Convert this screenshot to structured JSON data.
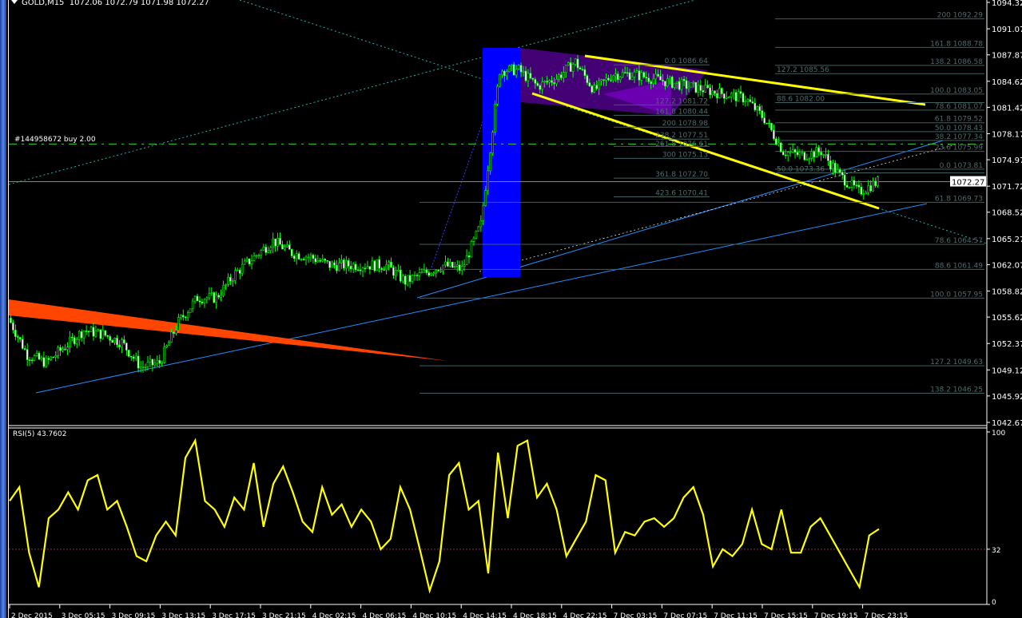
{
  "header": {
    "symbol": "GOLD,M15",
    "open": "1072.06",
    "high": "1072.79",
    "low": "1071.98",
    "close": "1072.27"
  },
  "order_label": "#144958672 buy 2.00",
  "order_price": 1076.9,
  "current_price": "1072.27",
  "colors": {
    "background": "#000000",
    "bull_candle": "#00ff00",
    "trendline_yellow": "#ffff00",
    "channel_blue": "#1e90ff",
    "rectangle": "#0000ff",
    "wedge": "#ff4500",
    "triangle": "#4b0082",
    "fib": "#4d6b6b",
    "rsi": "#ffff00"
  },
  "chart_data": [
    {
      "type": "candlestick",
      "title": "GOLD,M15",
      "price_axis": [
        "1094.32",
        "1091.07",
        "1087.87",
        "1084.62",
        "1081.42",
        "1078.17",
        "1074.97",
        "1071.72",
        "1068.52",
        "1065.27",
        "1062.07",
        "1058.82",
        "1055.62",
        "1052.37",
        "1049.12",
        "1045.92",
        "1042.67"
      ],
      "ylim": [
        1042.67,
        1094.32
      ],
      "time_axis": [
        "2 Dec 2015",
        "3 Dec 05:15",
        "3 Dec 09:15",
        "3 Dec 13:15",
        "3 Dec 17:15",
        "3 Dec 21:15",
        "4 Dec 02:15",
        "4 Dec 06:15",
        "4 Dec 10:15",
        "4 Dec 14:15",
        "4 Dec 18:15",
        "4 Dec 22:15",
        "7 Dec 03:15",
        "7 Dec 07:15",
        "7 Dec 11:15",
        "7 Dec 15:15",
        "7 Dec 19:15",
        "7 Dec 23:15"
      ],
      "close_path": [
        1055.5,
        1051,
        1050,
        1052,
        1054,
        1053.5,
        1052.5,
        1049.5,
        1050,
        1055,
        1058,
        1058,
        1061,
        1063,
        1065,
        1063.5,
        1063,
        1062,
        1062,
        1062,
        1062,
        1060,
        1061,
        1062,
        1061.5,
        1067,
        1086,
        1086,
        1084,
        1085,
        1087,
        1083.5,
        1085.5,
        1085.5,
        1085,
        1084.5,
        1084,
        1083.5,
        1083,
        1082.5,
        1080,
        1076,
        1075.5,
        1076,
        1073,
        1071,
        1072.27
      ],
      "fib_right": [
        {
          "level": "200",
          "price": "1092.29"
        },
        {
          "level": "161.8",
          "price": "1088.78"
        },
        {
          "level": "138.2",
          "price": "1086.58"
        },
        {
          "level": "127.2",
          "price": "1085.56"
        },
        {
          "level": "100.0",
          "price": "1083.05"
        },
        {
          "level": "88.6",
          "price": "1082.00"
        },
        {
          "level": "78.6",
          "price": "1081.07"
        },
        {
          "level": "61.8",
          "price": "1079.52"
        },
        {
          "level": "50.0",
          "price": "1078.43"
        },
        {
          "level": "38.2",
          "price": "1077.34"
        },
        {
          "level": "23.6",
          "price": "1075.99"
        },
        {
          "level": "0.0",
          "price": "1073.81"
        },
        {
          "level": "50.0",
          "price": "1073.36"
        },
        {
          "level": "61.8",
          "price": "1069.73"
        },
        {
          "level": "78.6",
          "price": "1064.57"
        },
        {
          "level": "88.6",
          "price": "1061.49"
        },
        {
          "level": "100.0",
          "price": "1057.95"
        },
        {
          "level": "127.2",
          "price": "1049.63"
        },
        {
          "level": "138.2",
          "price": "1046.25"
        }
      ],
      "fib_mid": [
        {
          "level": "0.0",
          "price": "1086.64"
        },
        {
          "level": "127.2",
          "price": "1081.72"
        },
        {
          "level": "161.8",
          "price": "1080.44"
        },
        {
          "level": "200",
          "price": "1078.98"
        },
        {
          "level": "238.2",
          "price": "1077.51"
        },
        {
          "level": "261.8",
          "price": "1076.61"
        },
        {
          "level": "300",
          "price": "1075.13"
        },
        {
          "level": "361.8",
          "price": "1072.70"
        },
        {
          "level": "423.6",
          "price": "1070.41"
        }
      ]
    },
    {
      "type": "line",
      "title": "RSI(5) 43.7602",
      "ylim": [
        0,
        100
      ],
      "ticks": [
        "100",
        "32",
        "0"
      ],
      "level": 32,
      "values": [
        60,
        68,
        30,
        10,
        50,
        55,
        65,
        55,
        72,
        75,
        55,
        60,
        45,
        28,
        25,
        40,
        48,
        40,
        85,
        95,
        60,
        55,
        45,
        62,
        55,
        82,
        45,
        70,
        80,
        65,
        48,
        42,
        68,
        52,
        58,
        45,
        55,
        48,
        32,
        38,
        68,
        55,
        32,
        8,
        25,
        75,
        82,
        55,
        60,
        18,
        88,
        50,
        92,
        95,
        62,
        70,
        55,
        28,
        38,
        48,
        75,
        72,
        30,
        42,
        40,
        48,
        50,
        45,
        50,
        62,
        68,
        52,
        22,
        32,
        28,
        35,
        55,
        35,
        32,
        55,
        30,
        30,
        45,
        50,
        40,
        30,
        20,
        10,
        40,
        43.76
      ]
    }
  ]
}
